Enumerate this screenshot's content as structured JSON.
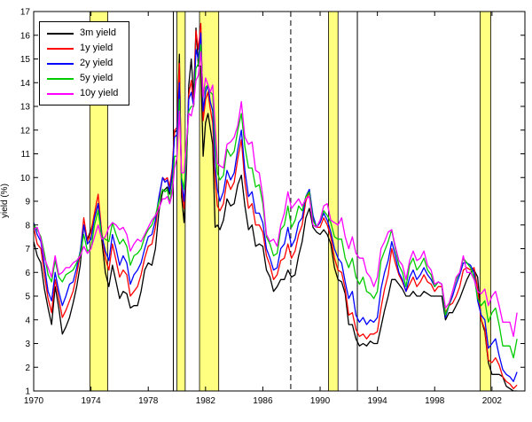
{
  "figure": {
    "background": "#ffffff",
    "border_color": "#000000"
  },
  "chart_data": {
    "type": "line",
    "title": "",
    "xlabel": "",
    "ylabel": "yield (%)",
    "xlim": [
      1970,
      2004.3
    ],
    "ylim": [
      1,
      17
    ],
    "grid": false,
    "legend_position": "top-left",
    "x_ticks": [
      1970,
      1974,
      1978,
      1982,
      1986,
      1990,
      1994,
      1998,
      2002
    ],
    "y_ticks": [
      1,
      2,
      3,
      4,
      5,
      6,
      7,
      8,
      9,
      10,
      11,
      12,
      13,
      14,
      15,
      16,
      17
    ],
    "recession_bands": {
      "color": "#ffff80",
      "edge_color": "#000000",
      "ranges": [
        [
          1973.92,
          1975.17
        ],
        [
          1980.0,
          1980.58
        ],
        [
          1981.58,
          1982.92
        ],
        [
          1990.58,
          1991.25
        ],
        [
          2001.17,
          2001.92
        ]
      ]
    },
    "vlines": {
      "solid": [
        1979.75,
        1992.6
      ],
      "dashed": [
        1987.95
      ],
      "color": "#000000"
    },
    "x": [
      1970,
      1970.25,
      1970.5,
      1970.75,
      1971,
      1971.25,
      1971.5,
      1971.75,
      1972,
      1972.25,
      1972.5,
      1972.75,
      1973,
      1973.25,
      1973.5,
      1973.75,
      1974,
      1974.25,
      1974.5,
      1974.75,
      1975,
      1975.25,
      1975.5,
      1975.75,
      1976,
      1976.25,
      1976.5,
      1976.75,
      1977,
      1977.25,
      1977.5,
      1977.75,
      1978,
      1978.25,
      1978.5,
      1978.75,
      1979,
      1979.17,
      1979.33,
      1979.5,
      1979.67,
      1979.83,
      1980,
      1980.17,
      1980.33,
      1980.5,
      1980.67,
      1980.83,
      1981,
      1981.17,
      1981.33,
      1981.5,
      1981.67,
      1981.83,
      1982,
      1982.17,
      1982.33,
      1982.5,
      1982.67,
      1982.83,
      1983,
      1983.25,
      1983.5,
      1983.75,
      1984,
      1984.25,
      1984.5,
      1984.75,
      1985,
      1985.25,
      1985.5,
      1985.75,
      1986,
      1986.25,
      1986.5,
      1986.75,
      1987,
      1987.25,
      1987.5,
      1987.75,
      1988,
      1988.25,
      1988.5,
      1988.75,
      1989,
      1989.25,
      1989.5,
      1989.75,
      1990,
      1990.25,
      1990.5,
      1990.75,
      1991,
      1991.25,
      1991.5,
      1991.75,
      1992,
      1992.25,
      1992.5,
      1992.75,
      1993,
      1993.25,
      1993.5,
      1993.75,
      1994,
      1994.25,
      1994.5,
      1994.75,
      1995,
      1995.25,
      1995.5,
      1995.75,
      1996,
      1996.25,
      1996.5,
      1996.75,
      1997,
      1997.25,
      1997.5,
      1997.75,
      1998,
      1998.25,
      1998.5,
      1998.75,
      1999,
      1999.25,
      1999.5,
      1999.75,
      2000,
      2000.25,
      2000.5,
      2000.75,
      2001,
      2001.25,
      2001.5,
      2001.75,
      2002,
      2002.25,
      2002.5,
      2002.75,
      2003,
      2003.25,
      2003.5,
      2003.75
    ],
    "series": [
      {
        "name": "3m yield",
        "color": "#000000",
        "values": [
          7.3,
          6.7,
          6.4,
          5.3,
          4.5,
          3.8,
          5.4,
          4.5,
          3.4,
          3.7,
          4.1,
          4.7,
          5.4,
          6.3,
          8.0,
          7.4,
          7.8,
          8.3,
          8.9,
          7.4,
          6.0,
          5.4,
          6.3,
          5.6,
          4.9,
          5.2,
          5.1,
          4.5,
          4.6,
          4.6,
          5.2,
          6.1,
          6.4,
          6.3,
          7.0,
          8.6,
          9.4,
          9.5,
          9.6,
          9.3,
          10.1,
          11.9,
          12.0,
          15.2,
          9.2,
          8.1,
          10.3,
          13.9,
          15.0,
          13.4,
          16.3,
          14.7,
          14.7,
          10.9,
          12.3,
          12.7,
          12.1,
          11.4,
          7.9,
          8.0,
          7.8,
          8.2,
          9.1,
          8.8,
          8.9,
          9.7,
          10.1,
          8.8,
          7.8,
          8.0,
          7.1,
          7.2,
          7.1,
          6.1,
          5.8,
          5.2,
          5.4,
          5.7,
          5.7,
          6.1,
          5.8,
          5.9,
          6.7,
          7.3,
          8.3,
          8.7,
          7.9,
          7.7,
          7.6,
          7.8,
          7.6,
          7.2,
          6.2,
          5.7,
          5.6,
          5.1,
          3.8,
          3.8,
          3.2,
          2.9,
          3.0,
          2.9,
          3.1,
          3.0,
          3.0,
          3.7,
          4.4,
          5.0,
          5.7,
          5.7,
          5.5,
          5.3,
          5.0,
          5.0,
          5.2,
          5.0,
          5.0,
          5.2,
          5.1,
          5.0,
          5.0,
          5.0,
          5.0,
          4.0,
          4.3,
          4.3,
          4.6,
          4.9,
          5.3,
          5.7,
          6.0,
          6.1,
          5.8,
          4.0,
          3.5,
          2.2,
          1.7,
          1.7,
          1.7,
          1.6,
          1.2,
          1.1,
          1.0,
          1.0
        ]
      },
      {
        "name": "1y yield",
        "color": "#ff0000",
        "values": [
          7.9,
          7.2,
          7.0,
          5.9,
          4.9,
          4.3,
          5.7,
          4.9,
          4.1,
          4.4,
          4.8,
          5.2,
          5.9,
          6.8,
          8.3,
          7.3,
          7.7,
          8.5,
          9.3,
          7.7,
          6.6,
          6.1,
          7.2,
          6.5,
          5.8,
          6.1,
          5.9,
          5.0,
          5.2,
          5.4,
          5.9,
          6.6,
          7.1,
          7.2,
          7.9,
          9.1,
          10.0,
          9.9,
          10.0,
          9.6,
          10.4,
          12.0,
          12.1,
          14.8,
          9.6,
          8.7,
          10.6,
          13.5,
          14.1,
          13.0,
          16.2,
          15.4,
          16.5,
          12.4,
          13.3,
          13.6,
          12.9,
          12.3,
          9.9,
          8.8,
          8.6,
          8.9,
          9.9,
          9.5,
          9.8,
          10.8,
          11.6,
          9.8,
          8.7,
          8.9,
          8.0,
          8.0,
          7.7,
          6.7,
          6.3,
          5.7,
          5.9,
          6.5,
          6.6,
          7.2,
          6.6,
          6.9,
          7.6,
          8.0,
          9.0,
          9.4,
          8.3,
          7.9,
          7.9,
          8.3,
          8.0,
          7.5,
          6.6,
          6.1,
          6.0,
          5.3,
          4.2,
          4.3,
          3.6,
          3.3,
          3.4,
          3.2,
          3.4,
          3.4,
          3.5,
          4.5,
          5.3,
          5.9,
          7.0,
          6.4,
          5.9,
          5.6,
          5.2,
          5.5,
          5.8,
          5.4,
          5.6,
          5.9,
          5.6,
          5.5,
          5.2,
          5.4,
          5.4,
          4.3,
          4.6,
          4.7,
          5.0,
          5.4,
          6.1,
          6.2,
          6.1,
          6.2,
          5.3,
          4.0,
          3.6,
          2.3,
          2.2,
          2.4,
          2.1,
          1.6,
          1.4,
          1.3,
          1.1,
          1.25
        ]
      },
      {
        "name": "2y yield",
        "color": "#0000ff",
        "values": [
          8.1,
          7.6,
          7.3,
          6.3,
          5.2,
          4.8,
          6.0,
          5.2,
          4.6,
          5.0,
          5.5,
          5.6,
          6.2,
          6.9,
          8.0,
          7.2,
          7.4,
          8.3,
          8.9,
          7.6,
          6.9,
          6.5,
          7.6,
          7.0,
          6.3,
          6.7,
          6.4,
          5.5,
          5.9,
          6.1,
          6.4,
          7.0,
          7.5,
          7.6,
          8.2,
          9.2,
          10.0,
          9.8,
          9.9,
          9.4,
          10.2,
          11.7,
          11.8,
          14.0,
          9.8,
          9.0,
          10.8,
          13.3,
          13.6,
          13.0,
          15.4,
          15.0,
          16.1,
          12.8,
          13.6,
          13.9,
          13.2,
          12.8,
          10.5,
          9.5,
          9.0,
          9.4,
          10.3,
          9.9,
          10.2,
          11.2,
          12.0,
          10.3,
          9.2,
          9.4,
          8.5,
          8.5,
          8.1,
          7.0,
          6.6,
          6.1,
          6.2,
          7.0,
          7.2,
          7.9,
          7.1,
          7.4,
          8.1,
          8.3,
          9.2,
          9.5,
          8.4,
          7.9,
          8.1,
          8.5,
          8.2,
          7.7,
          7.0,
          6.6,
          6.4,
          5.6,
          4.9,
          5.2,
          4.2,
          3.9,
          4.1,
          3.8,
          4.0,
          3.9,
          4.1,
          5.3,
          6.0,
          6.5,
          7.3,
          6.7,
          6.0,
          5.7,
          5.2,
          5.8,
          6.1,
          5.7,
          5.9,
          6.2,
          5.9,
          5.7,
          5.4,
          5.6,
          5.5,
          4.1,
          4.6,
          5.0,
          5.5,
          5.9,
          6.4,
          6.4,
          6.3,
          6.0,
          4.8,
          4.2,
          4.0,
          2.8,
          3.0,
          3.2,
          2.5,
          1.9,
          1.7,
          1.6,
          1.4,
          1.8
        ]
      },
      {
        "name": "5y yield",
        "color": "#00cc00",
        "values": [
          8.0,
          7.8,
          7.5,
          6.8,
          5.9,
          5.6,
          6.5,
          5.8,
          5.6,
          5.9,
          6.0,
          6.1,
          6.4,
          6.8,
          7.6,
          6.9,
          7.0,
          8.0,
          8.6,
          7.5,
          7.4,
          7.3,
          8.1,
          7.6,
          7.2,
          7.4,
          7.1,
          6.3,
          6.7,
          6.8,
          7.0,
          7.5,
          7.8,
          8.0,
          8.4,
          9.0,
          9.5,
          9.4,
          9.5,
          8.9,
          9.6,
          10.9,
          10.9,
          13.3,
          10.0,
          9.5,
          11.0,
          12.8,
          13.0,
          13.0,
          14.6,
          14.8,
          15.6,
          13.4,
          13.8,
          13.9,
          13.6,
          13.5,
          11.5,
          10.2,
          9.9,
          10.1,
          11.2,
          10.9,
          11.1,
          12.0,
          12.7,
          11.3,
          10.4,
          10.4,
          9.6,
          9.7,
          8.9,
          7.5,
          7.2,
          6.7,
          6.8,
          7.8,
          8.0,
          8.8,
          7.9,
          8.2,
          8.8,
          8.6,
          9.2,
          9.4,
          8.2,
          7.9,
          8.2,
          8.6,
          8.4,
          8.1,
          7.5,
          7.4,
          7.4,
          6.6,
          6.2,
          6.6,
          5.8,
          5.5,
          5.8,
          5.2,
          5.1,
          4.9,
          5.2,
          6.5,
          6.9,
          7.3,
          7.8,
          7.0,
          6.3,
          6.0,
          5.4,
          6.3,
          6.6,
          6.1,
          6.3,
          6.6,
          6.1,
          5.9,
          5.4,
          5.6,
          5.5,
          4.2,
          4.6,
          5.2,
          5.7,
          6.0,
          6.6,
          6.4,
          6.2,
          5.8,
          4.9,
          4.6,
          4.8,
          3.9,
          4.3,
          4.5,
          3.8,
          2.9,
          2.9,
          2.9,
          2.4,
          3.2
        ]
      },
      {
        "name": "10y yield",
        "color": "#ff00ff",
        "values": [
          7.8,
          7.9,
          7.4,
          6.6,
          6.2,
          5.8,
          6.7,
          5.9,
          6.0,
          6.2,
          6.2,
          6.4,
          6.5,
          6.7,
          7.1,
          6.8,
          7.0,
          7.5,
          8.0,
          7.4,
          7.5,
          7.9,
          8.1,
          8.0,
          7.8,
          7.9,
          7.6,
          6.9,
          7.2,
          7.4,
          7.3,
          7.6,
          7.9,
          8.2,
          8.4,
          8.7,
          9.1,
          9.1,
          9.2,
          8.9,
          9.3,
          10.4,
          10.8,
          12.8,
          10.2,
          10.2,
          11.5,
          12.7,
          12.6,
          13.1,
          14.1,
          14.3,
          15.3,
          13.4,
          14.2,
          13.9,
          13.6,
          13.9,
          12.2,
          10.6,
          10.5,
          10.4,
          11.4,
          11.5,
          11.7,
          12.2,
          13.2,
          11.7,
          11.4,
          11.5,
          10.3,
          10.2,
          9.2,
          7.6,
          7.3,
          7.4,
          7.1,
          8.0,
          8.5,
          9.4,
          8.7,
          8.9,
          9.1,
          8.8,
          9.1,
          9.2,
          8.0,
          7.9,
          8.2,
          8.8,
          8.9,
          8.2,
          8.1,
          8.0,
          8.3,
          7.5,
          7.0,
          7.5,
          6.8,
          6.6,
          6.6,
          6.0,
          5.8,
          5.4,
          5.8,
          7.0,
          7.3,
          7.7,
          7.8,
          7.1,
          6.5,
          6.3,
          5.7,
          6.5,
          6.9,
          6.5,
          6.6,
          6.9,
          6.3,
          6.1,
          5.5,
          5.6,
          5.5,
          4.5,
          4.7,
          5.2,
          5.8,
          6.0,
          6.7,
          6.0,
          6.0,
          5.7,
          5.2,
          5.1,
          5.3,
          4.6,
          5.0,
          5.2,
          4.6,
          3.9,
          3.9,
          3.9,
          3.3,
          4.3
        ]
      }
    ]
  },
  "legend": {
    "position": "top-left",
    "entries": [
      {
        "label": "3m yield",
        "color": "#000000"
      },
      {
        "label": "1y yield",
        "color": "#ff0000"
      },
      {
        "label": "2y yield",
        "color": "#0000ff"
      },
      {
        "label": "5y yield",
        "color": "#00cc00"
      },
      {
        "label": "10y yield",
        "color": "#ff00ff"
      }
    ]
  }
}
